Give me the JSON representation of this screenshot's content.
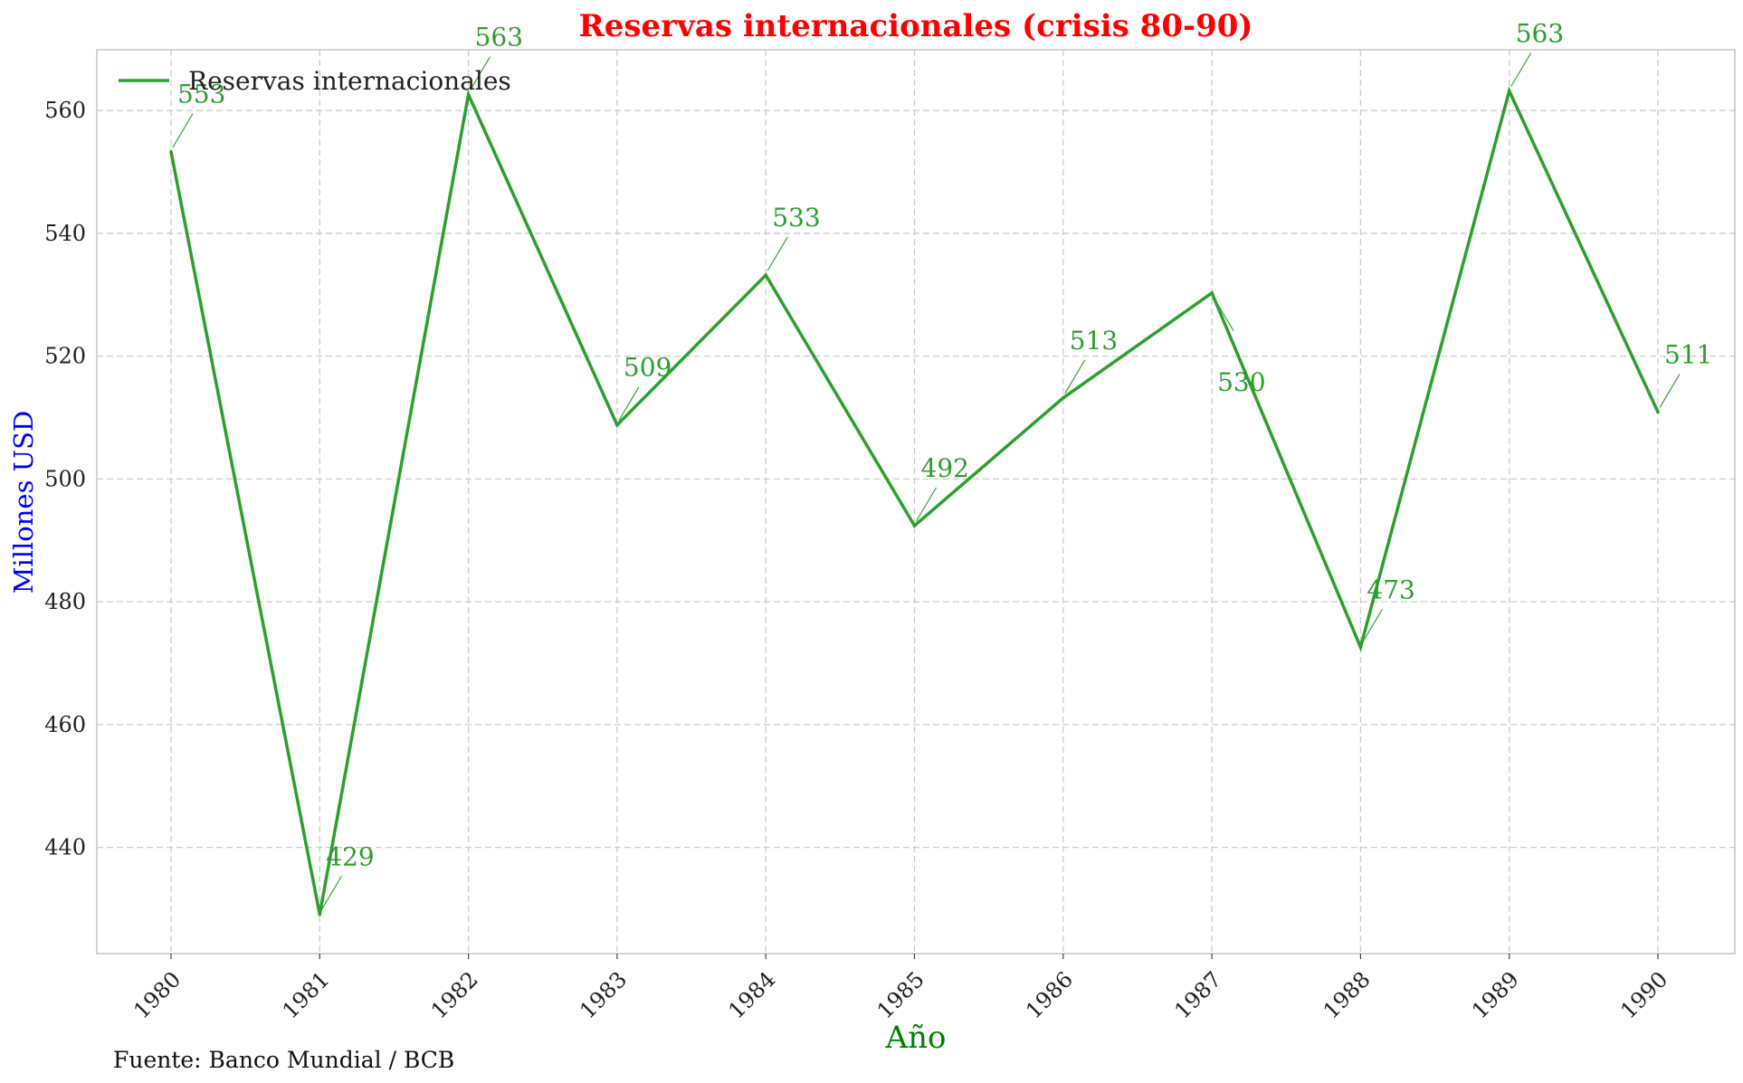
{
  "chart_data": {
    "type": "line",
    "title": "Reservas internacionales (crisis 80-90)",
    "xlabel": "Año",
    "ylabel": "Millones USD",
    "x": [
      "1980",
      "1981",
      "1982",
      "1983",
      "1984",
      "1985",
      "1986",
      "1987",
      "1988",
      "1989",
      "1990"
    ],
    "series": [
      {
        "name": "Reservas internacionales",
        "color": "#2ca02c",
        "values": [
          553.3,
          429.1,
          562.6,
          508.8,
          533.2,
          492.4,
          513.2,
          530.3,
          472.6,
          563.2,
          510.9
        ],
        "labels": [
          "553",
          "429",
          "563",
          "509",
          "533",
          "492",
          "513",
          "530",
          "473",
          "563",
          "511"
        ]
      }
    ],
    "ylim": [
      422.7,
      569.9
    ],
    "yticks": [
      440,
      460,
      480,
      500,
      520,
      540,
      560
    ],
    "grid": true,
    "legend": "top-left",
    "source": "Fuente: Banco Mundial / BCB",
    "colors": {
      "title": "#ff0000",
      "ylabel": "#0000ff",
      "xlabel": "#008000",
      "line": "#2ca02c"
    }
  }
}
